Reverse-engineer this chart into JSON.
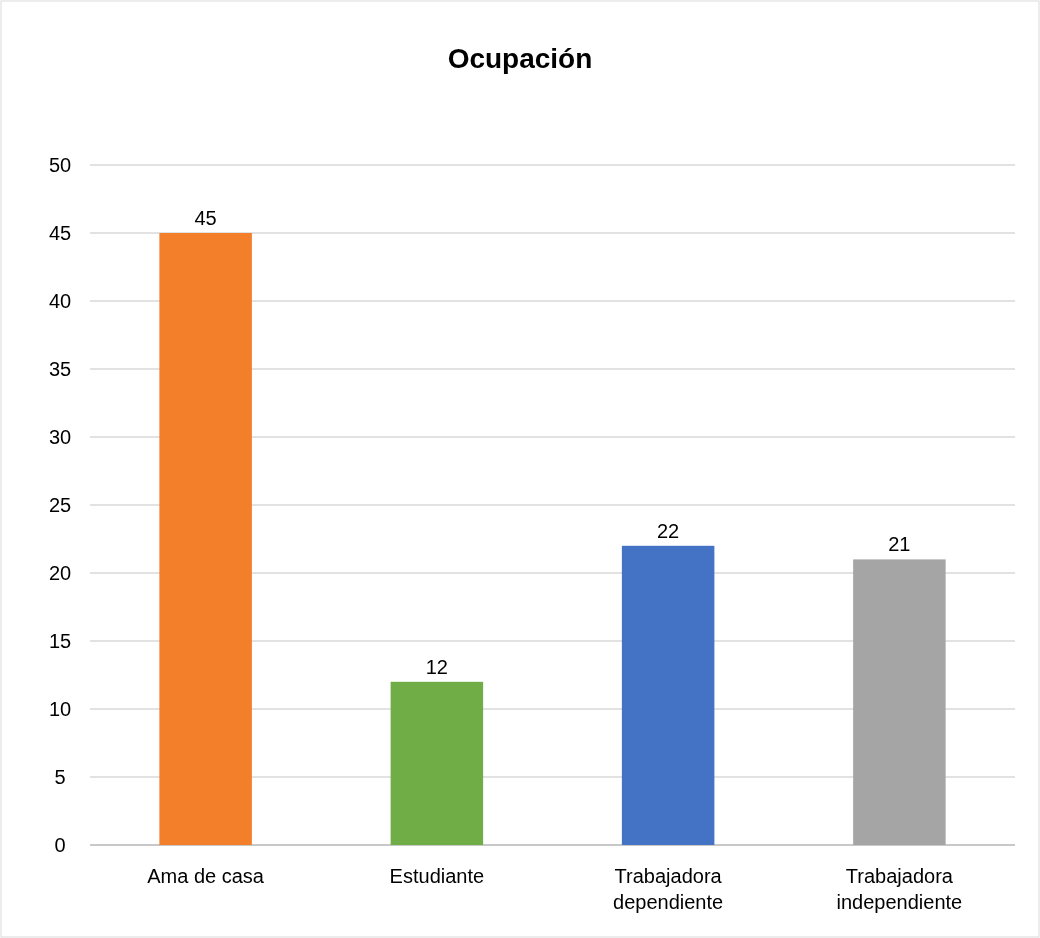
{
  "chart_data": {
    "type": "bar",
    "title": "Ocupación",
    "categories": [
      "Ama de casa",
      "Estudiante",
      "Trabajadora dependiente",
      "Trabajadora independiente"
    ],
    "values": [
      45,
      12,
      22,
      21
    ],
    "colors": [
      "#f47f2a",
      "#70ad47",
      "#4472c4",
      "#a5a5a5"
    ],
    "ylim": [
      0,
      50
    ],
    "yticks": [
      0,
      5,
      10,
      15,
      20,
      25,
      30,
      35,
      40,
      45,
      50
    ],
    "grid": "y",
    "data_labels": true
  }
}
